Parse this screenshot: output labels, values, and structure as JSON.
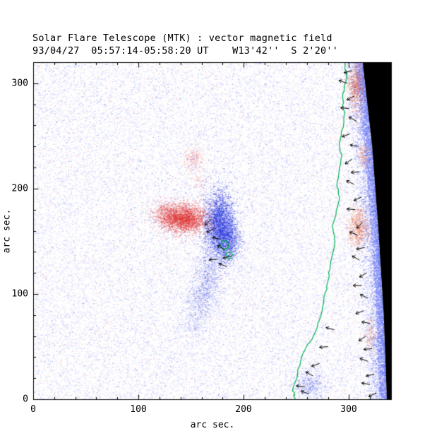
{
  "title": "Solar Flare Telescope (MTK) : vector magnetic field",
  "subtitle": "93/04/27  05:57:14-05:58:20 UT    W13'42''  S 2'20''",
  "chart_data": {
    "type": "heatmap",
    "description": "Vector magnetogram: red = positive polarity, blue = negative polarity, black = off-limb sky, green = contour line near limb, short black segments = transverse field vectors",
    "xlabel": "arc sec.",
    "ylabel": "arc sec.",
    "xlim": [
      0,
      340
    ],
    "ylim": [
      0,
      320
    ],
    "xticks": [
      "0",
      "100",
      "200",
      "300"
    ],
    "yticks": [
      "0",
      "100",
      "200",
      "300"
    ],
    "xtick_values": [
      0,
      100,
      200,
      300
    ],
    "ytick_values": [
      0,
      100,
      200,
      300
    ],
    "minor_tick_step": 20,
    "colors": {
      "positive": "#e03030",
      "negative": "#2838e0",
      "noise_blue": "#6978f5",
      "noise_pink": "#fa828c",
      "contour": "#00b050",
      "sky": "#000000",
      "vectors": "#000000",
      "axis": "#000000",
      "background": "#ffffff"
    },
    "noise": {
      "seed": 930427,
      "base_blue": 30000,
      "base_pink": 11000,
      "strong_blue": 1600,
      "limb_band": 7000,
      "limb_dense": 2200
    },
    "features": {
      "positive_region": {
        "color": "#e03030",
        "clusters": [
          {
            "x": 143,
            "y": 172,
            "sx": 11,
            "sy": 7,
            "n": 3000,
            "alpha": 0.5
          },
          {
            "x": 127,
            "y": 177,
            "sx": 8,
            "sy": 6,
            "n": 800,
            "alpha": 0.3
          },
          {
            "x": 152,
            "y": 228,
            "sx": 5,
            "sy": 5,
            "n": 260,
            "alpha": 0.3
          },
          {
            "x": 157,
            "y": 208,
            "sx": 4,
            "sy": 5,
            "n": 100,
            "alpha": 0.22
          }
        ]
      },
      "negative_region": {
        "color": "#2838e0",
        "clusters": [
          {
            "x": 177,
            "y": 167,
            "sx": 7,
            "sy": 16,
            "n": 3600,
            "alpha": 0.55
          },
          {
            "x": 186,
            "y": 150,
            "sx": 6,
            "sy": 10,
            "n": 1300,
            "alpha": 0.4
          },
          {
            "x": 167,
            "y": 118,
            "sx": 7,
            "sy": 14,
            "n": 1000,
            "alpha": 0.3
          },
          {
            "x": 158,
            "y": 93,
            "sx": 8,
            "sy": 12,
            "n": 750,
            "alpha": 0.25
          },
          {
            "x": 151,
            "y": 71,
            "sx": 6,
            "sy": 7,
            "n": 280,
            "alpha": 0.2
          },
          {
            "x": 262,
            "y": 14,
            "sx": 9,
            "sy": 8,
            "n": 700,
            "alpha": 0.3
          }
        ]
      },
      "limb_red": {
        "color": "#e05028",
        "clusters": [
          {
            "x": 306,
            "y": 298,
            "sx": 4,
            "sy": 13,
            "n": 900,
            "alpha": 0.4
          },
          {
            "x": 308,
            "y": 163,
            "sx": 5,
            "sy": 10,
            "n": 800,
            "alpha": 0.4
          },
          {
            "x": 314,
            "y": 232,
            "sx": 3,
            "sy": 6,
            "n": 250,
            "alpha": 0.3
          },
          {
            "x": 320,
            "y": 60,
            "sx": 3,
            "sy": 8,
            "n": 220,
            "alpha": 0.3
          }
        ]
      }
    },
    "limb_boundary": [
      [
        313,
        320
      ],
      [
        322,
        240
      ],
      [
        328,
        160
      ],
      [
        333,
        80
      ],
      [
        336,
        0
      ]
    ],
    "contour": [
      [
        296,
        320
      ],
      [
        298,
        305
      ],
      [
        294,
        286
      ],
      [
        296,
        268
      ],
      [
        291,
        246
      ],
      [
        293,
        228
      ],
      [
        289,
        206
      ],
      [
        291,
        188
      ],
      [
        284,
        165
      ],
      [
        287,
        148
      ],
      [
        282,
        124
      ],
      [
        279,
        104
      ],
      [
        274,
        84
      ],
      [
        268,
        64
      ],
      [
        257,
        44
      ],
      [
        251,
        24
      ],
      [
        247,
        8
      ],
      [
        249,
        0
      ]
    ],
    "inner_contours": [
      {
        "x": 182,
        "y": 146,
        "r": 4
      },
      {
        "x": 186,
        "y": 137,
        "r": 3
      }
    ],
    "vectors": [
      [
        303,
        312,
        195
      ],
      [
        298,
        300,
        160
      ],
      [
        305,
        288,
        210
      ],
      [
        300,
        276,
        175
      ],
      [
        307,
        264,
        150
      ],
      [
        301,
        252,
        200
      ],
      [
        309,
        240,
        170
      ],
      [
        303,
        228,
        215
      ],
      [
        310,
        216,
        185
      ],
      [
        305,
        204,
        155
      ],
      [
        312,
        192,
        205
      ],
      [
        306,
        180,
        175
      ],
      [
        313,
        168,
        225
      ],
      [
        308,
        156,
        160
      ],
      [
        315,
        144,
        190
      ],
      [
        310,
        132,
        150
      ],
      [
        317,
        120,
        210
      ],
      [
        312,
        108,
        180
      ],
      [
        318,
        96,
        155
      ],
      [
        314,
        84,
        200
      ],
      [
        320,
        72,
        170
      ],
      [
        316,
        60,
        215
      ],
      [
        322,
        48,
        185
      ],
      [
        318,
        36,
        160
      ],
      [
        324,
        24,
        195
      ],
      [
        320,
        14,
        170
      ],
      [
        326,
        6,
        205
      ],
      [
        258,
        12,
        175
      ],
      [
        266,
        22,
        150
      ],
      [
        272,
        34,
        200
      ],
      [
        262,
        5,
        160
      ],
      [
        280,
        50,
        185
      ],
      [
        286,
        66,
        165
      ],
      [
        172,
        162,
        205
      ],
      [
        178,
        152,
        170
      ],
      [
        182,
        142,
        150
      ],
      [
        175,
        133,
        185
      ],
      [
        169,
        171,
        225
      ],
      [
        184,
        126,
        160
      ],
      [
        188,
        136,
        195
      ]
    ]
  }
}
